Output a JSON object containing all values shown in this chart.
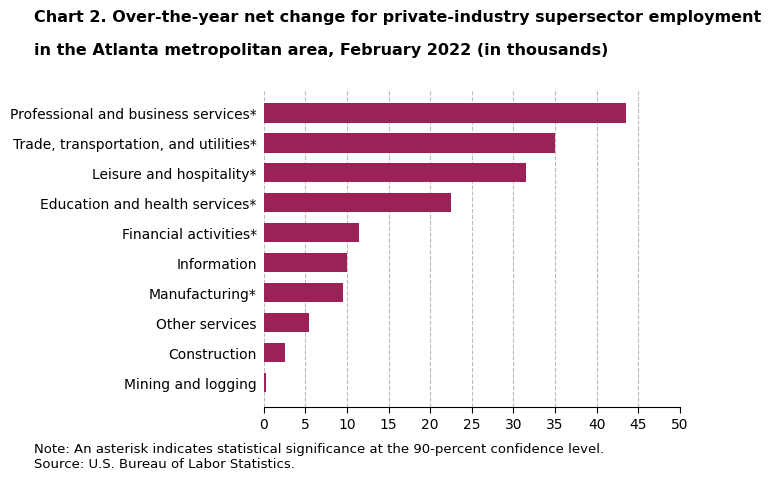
{
  "title_line1": "Chart 2. Over-the-year net change for private-industry supersector employment",
  "title_line2": "in the Atlanta metropolitan area, February 2022 (in thousands)",
  "categories": [
    "Mining and logging",
    "Construction",
    "Other services",
    "Manufacturing*",
    "Information",
    "Financial activities*",
    "Education and health services*",
    "Leisure and hospitality*",
    "Trade, transportation, and utilities*",
    "Professional and business services*"
  ],
  "values": [
    0.3,
    2.5,
    5.5,
    9.5,
    10.0,
    11.5,
    22.5,
    31.5,
    35.0,
    43.5
  ],
  "bar_color": "#9b2257",
  "xlim": [
    0,
    50
  ],
  "xticks": [
    0,
    5,
    10,
    15,
    20,
    25,
    30,
    35,
    40,
    45,
    50
  ],
  "grid_color": "#bbbbbb",
  "background_color": "#ffffff",
  "note": "Note: An asterisk indicates statistical significance at the 90-percent confidence level.",
  "source": "Source: U.S. Bureau of Labor Statistics.",
  "title_fontsize": 11.5,
  "label_fontsize": 10,
  "tick_fontsize": 10,
  "note_fontsize": 9.5,
  "bar_height": 0.65
}
